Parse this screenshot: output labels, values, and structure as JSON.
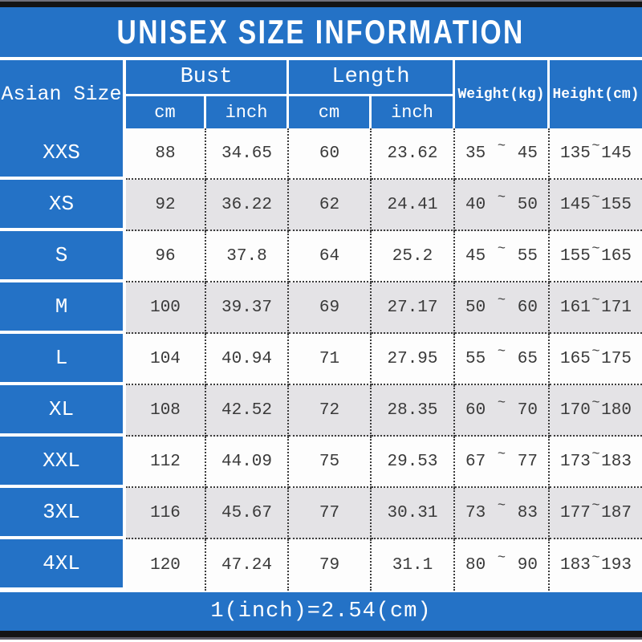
{
  "title": "UNISEX SIZE INFORMATION",
  "header": {
    "size": "Asian Size",
    "bust": "Bust",
    "length": "Length",
    "weight": "Weight(kg)",
    "height": "Height(cm)",
    "cm": "cm",
    "inch": "inch"
  },
  "tilde": "~",
  "rows": [
    {
      "size": "XXS",
      "bust_cm": "88",
      "bust_in": "34.65",
      "len_cm": "60",
      "len_in": "23.62",
      "w_lo": "35",
      "w_hi": "45",
      "h_lo": "135",
      "h_hi": "145"
    },
    {
      "size": "XS",
      "bust_cm": "92",
      "bust_in": "36.22",
      "len_cm": "62",
      "len_in": "24.41",
      "w_lo": "40",
      "w_hi": "50",
      "h_lo": "145",
      "h_hi": "155"
    },
    {
      "size": "S",
      "bust_cm": "96",
      "bust_in": "37.8",
      "len_cm": "64",
      "len_in": "25.2",
      "w_lo": "45",
      "w_hi": "55",
      "h_lo": "155",
      "h_hi": "165"
    },
    {
      "size": "M",
      "bust_cm": "100",
      "bust_in": "39.37",
      "len_cm": "69",
      "len_in": "27.17",
      "w_lo": "50",
      "w_hi": "60",
      "h_lo": "161",
      "h_hi": "171"
    },
    {
      "size": "L",
      "bust_cm": "104",
      "bust_in": "40.94",
      "len_cm": "71",
      "len_in": "27.95",
      "w_lo": "55",
      "w_hi": "65",
      "h_lo": "165",
      "h_hi": "175"
    },
    {
      "size": "XL",
      "bust_cm": "108",
      "bust_in": "42.52",
      "len_cm": "72",
      "len_in": "28.35",
      "w_lo": "60",
      "w_hi": "70",
      "h_lo": "170",
      "h_hi": "180"
    },
    {
      "size": "XXL",
      "bust_cm": "112",
      "bust_in": "44.09",
      "len_cm": "75",
      "len_in": "29.53",
      "w_lo": "67",
      "w_hi": "77",
      "h_lo": "173",
      "h_hi": "183"
    },
    {
      "size": "3XL",
      "bust_cm": "116",
      "bust_in": "45.67",
      "len_cm": "77",
      "len_in": "30.31",
      "w_lo": "73",
      "w_hi": "83",
      "h_lo": "177",
      "h_hi": "187"
    },
    {
      "size": "4XL",
      "bust_cm": "120",
      "bust_in": "47.24",
      "len_cm": "79",
      "len_in": "31.1",
      "w_lo": "80",
      "w_hi": "90",
      "h_lo": "183",
      "h_hi": "193"
    }
  ],
  "footer": {
    "note": "1(inch)=2.54(cm)"
  },
  "colors": {
    "blue": "#2472c6",
    "alt_row": "#e4e3e6",
    "dotted_border": "#3c3c3c",
    "text": "#3a3a3a",
    "bar": "#141414"
  },
  "chart_data": {
    "type": "table",
    "title": "UNISEX SIZE INFORMATION",
    "columns": [
      "Asian Size",
      "Bust cm",
      "Bust inch",
      "Length cm",
      "Length inch",
      "Weight(kg)",
      "Height(cm)"
    ],
    "rows": [
      [
        "XXS",
        88,
        34.65,
        60,
        23.62,
        "35~45",
        "135~145"
      ],
      [
        "XS",
        92,
        36.22,
        62,
        24.41,
        "40~50",
        "145~155"
      ],
      [
        "S",
        96,
        37.8,
        64,
        25.2,
        "45~55",
        "155~165"
      ],
      [
        "M",
        100,
        39.37,
        69,
        27.17,
        "50~60",
        "161~171"
      ],
      [
        "L",
        104,
        40.94,
        71,
        27.95,
        "55~65",
        "165~175"
      ],
      [
        "XL",
        108,
        42.52,
        72,
        28.35,
        "60~70",
        "170~180"
      ],
      [
        "XXL",
        112,
        44.09,
        75,
        29.53,
        "67~77",
        "173~183"
      ],
      [
        "3XL",
        116,
        45.67,
        77,
        30.31,
        "73~83",
        "177~187"
      ],
      [
        "4XL",
        120,
        47.24,
        79,
        31.1,
        "80~90",
        "183~193"
      ]
    ],
    "footer_note": "1(inch)=2.54(cm)"
  }
}
